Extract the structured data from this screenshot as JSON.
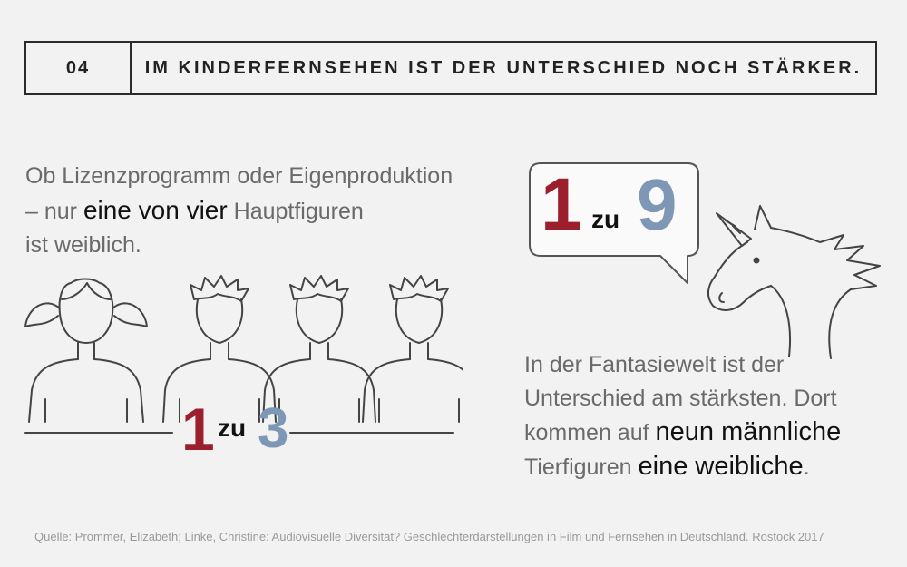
{
  "header": {
    "number": "04",
    "title": "IM KINDERFERNSEHEN IST DER UNTERSCHIED NOCH STÄRKER."
  },
  "intro": {
    "line1": "Ob Lizenzprogramm oder Eigenproduktion",
    "line2_prefix": "– nur ",
    "line2_emphasis": "eine von vier",
    "line2_suffix": " Hauptfiguren",
    "line3": "ist weiblich."
  },
  "ratio_main": {
    "left": "1",
    "mid": "zu",
    "right": "3"
  },
  "ratio_fantasy": {
    "left": "1",
    "mid": "zu",
    "right": "9"
  },
  "fantasy": {
    "line1": "In der Fantasiewelt ist der",
    "line2": "Unterschied am stärksten. Dort",
    "line3_prefix": "kommen auf ",
    "line3_emphasis": "neun männliche",
    "line4_prefix": "Tierfiguren ",
    "line4_emphasis": "eine weibliche",
    "line4_suffix": "."
  },
  "source": "Quelle: Prommer, Elizabeth; Linke, Christine: Audiovisuelle Diversität? Geschlechterdarstellungen in Film und Fernsehen in Deutschland. Rostock 2017",
  "colors": {
    "female": "#9c1f2d",
    "male": "#7d97b5",
    "line": "#444444"
  },
  "icons": [
    "girl-figure-icon",
    "boy-figure-icon",
    "speech-bubble-icon",
    "unicorn-icon"
  ]
}
